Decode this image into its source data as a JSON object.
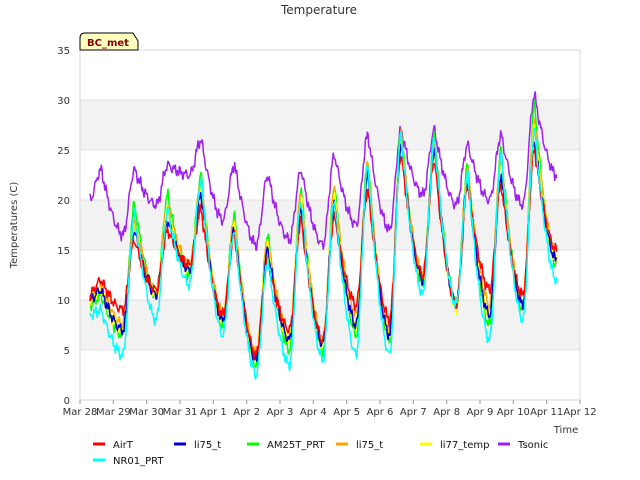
{
  "chart_data": {
    "type": "line",
    "title": "Temperature",
    "xlabel": "Time",
    "ylabel": "Temperatures (C)",
    "site_label": "BC_met",
    "ylim": [
      0,
      35
    ],
    "yticks": [
      0,
      5,
      10,
      15,
      20,
      25,
      30,
      35
    ],
    "xlim": [
      0,
      15
    ],
    "xtick_labels": [
      "Mar 28",
      "Mar 29",
      "Mar 30",
      "Mar 31",
      "Apr 1",
      "Apr 2",
      "Apr 3",
      "Apr 4",
      "Apr 5",
      "Apr 6",
      "Apr 7",
      "Apr 8",
      "Apr 9",
      "Apr 10",
      "Apr 11",
      "Apr 12"
    ],
    "x_unit": "days from Mar 28",
    "grid": "horizontal alternating bands",
    "legend_position": "bottom",
    "daily_min_max": {
      "days": [
        "Mar 28",
        "Mar 29",
        "Mar 30",
        "Mar 31",
        "Apr 1",
        "Apr 2",
        "Apr 3",
        "Apr 4",
        "Apr 5",
        "Apr 6",
        "Apr 7",
        "Apr 8",
        "Apr 9",
        "Apr 10",
        "Apr 11"
      ],
      "note": "Per series, each day: [min near ~0.3 day, max near ~0.65 day]"
    },
    "series": [
      {
        "name": "AirT",
        "color": "#ff0000",
        "mins": [
          10.5,
          9.0,
          11.0,
          13.5,
          8.5,
          4.5,
          7.0,
          6.0,
          9.5,
          8.0,
          12.5,
          9.5,
          11.0,
          10.5,
          15.0
        ],
        "maxs": [
          12.0,
          16.0,
          17.0,
          19.0,
          16.5,
          14.0,
          18.0,
          18.5,
          21.0,
          24.5,
          24.0,
          21.5,
          21.5,
          25.0,
          25.0
        ]
      },
      {
        "name": "NR01_PRT",
        "color": "#00ffff",
        "mins": [
          8.5,
          4.5,
          8.0,
          11.5,
          6.5,
          2.5,
          3.5,
          4.0,
          4.5,
          4.5,
          10.5,
          9.5,
          6.0,
          8.0,
          12.0
        ],
        "maxs": [
          9.0,
          18.5,
          19.0,
          22.0,
          17.0,
          14.0,
          20.0,
          20.0,
          23.5,
          26.5,
          26.0,
          22.5,
          24.5,
          27.0,
          26.0
        ]
      },
      {
        "name": "li75_t",
        "color": "#0000cd",
        "mins": [
          10.0,
          7.0,
          10.5,
          13.0,
          8.0,
          4.0,
          6.0,
          5.5,
          7.5,
          6.5,
          12.0,
          9.5,
          8.5,
          9.5,
          14.0
        ],
        "maxs": [
          11.0,
          17.0,
          18.0,
          20.5,
          17.0,
          15.0,
          19.0,
          19.5,
          22.5,
          25.5,
          25.0,
          22.0,
          22.5,
          26.0,
          26.0
        ]
      },
      {
        "name": "AM25T_PRT",
        "color": "#00ff00",
        "mins": [
          9.5,
          6.5,
          10.5,
          12.5,
          7.5,
          3.5,
          5.0,
          5.0,
          6.5,
          6.0,
          11.5,
          9.5,
          7.5,
          9.0,
          13.5
        ],
        "maxs": [
          10.5,
          19.5,
          20.5,
          22.5,
          18.5,
          16.5,
          21.0,
          21.5,
          24.0,
          27.0,
          26.5,
          23.5,
          25.0,
          29.5,
          27.5
        ]
      },
      {
        "name": "li75_t",
        "color": "#ffa500",
        "mins": [
          10.0,
          7.5,
          11.0,
          13.5,
          8.5,
          4.5,
          6.5,
          6.0,
          8.5,
          7.0,
          12.5,
          9.5,
          9.5,
          10.0,
          14.5
        ],
        "maxs": [
          11.5,
          18.0,
          19.5,
          21.5,
          18.0,
          16.0,
          20.5,
          21.0,
          23.5,
          26.5,
          25.5,
          23.0,
          24.0,
          28.0,
          27.0
        ]
      },
      {
        "name": "li77_temp",
        "color": "#ffff00",
        "mins": [
          10.0,
          7.0,
          10.5,
          13.0,
          8.0,
          4.0,
          6.0,
          5.5,
          7.5,
          6.5,
          12.0,
          9.0,
          8.5,
          9.5,
          14.0
        ],
        "maxs": [
          11.0,
          17.5,
          19.0,
          21.0,
          17.5,
          15.5,
          20.0,
          20.5,
          23.0,
          26.0,
          25.0,
          22.5,
          23.5,
          27.5,
          26.5
        ]
      },
      {
        "name": "Tsonic",
        "color": "#a020f0",
        "mins": [
          20.0,
          16.5,
          19.5,
          22.5,
          18.0,
          15.5,
          16.0,
          15.5,
          17.5,
          17.0,
          20.5,
          19.5,
          20.0,
          19.5,
          22.5
        ],
        "maxs": [
          23.0,
          23.0,
          23.5,
          26.0,
          23.5,
          22.5,
          23.0,
          24.5,
          26.5,
          27.0,
          27.0,
          25.5,
          26.5,
          30.5,
          29.0
        ]
      }
    ],
    "legend": [
      {
        "name": "AirT",
        "color": "#ff0000"
      },
      {
        "name": "li75_t",
        "color": "#0000cd"
      },
      {
        "name": "AM25T_PRT",
        "color": "#00ff00"
      },
      {
        "name": "li75_t",
        "color": "#ffa500"
      },
      {
        "name": "li77_temp",
        "color": "#ffff00"
      },
      {
        "name": "Tsonic",
        "color": "#a020f0"
      },
      {
        "name": "NR01_PRT",
        "color": "#00ffff"
      }
    ]
  }
}
